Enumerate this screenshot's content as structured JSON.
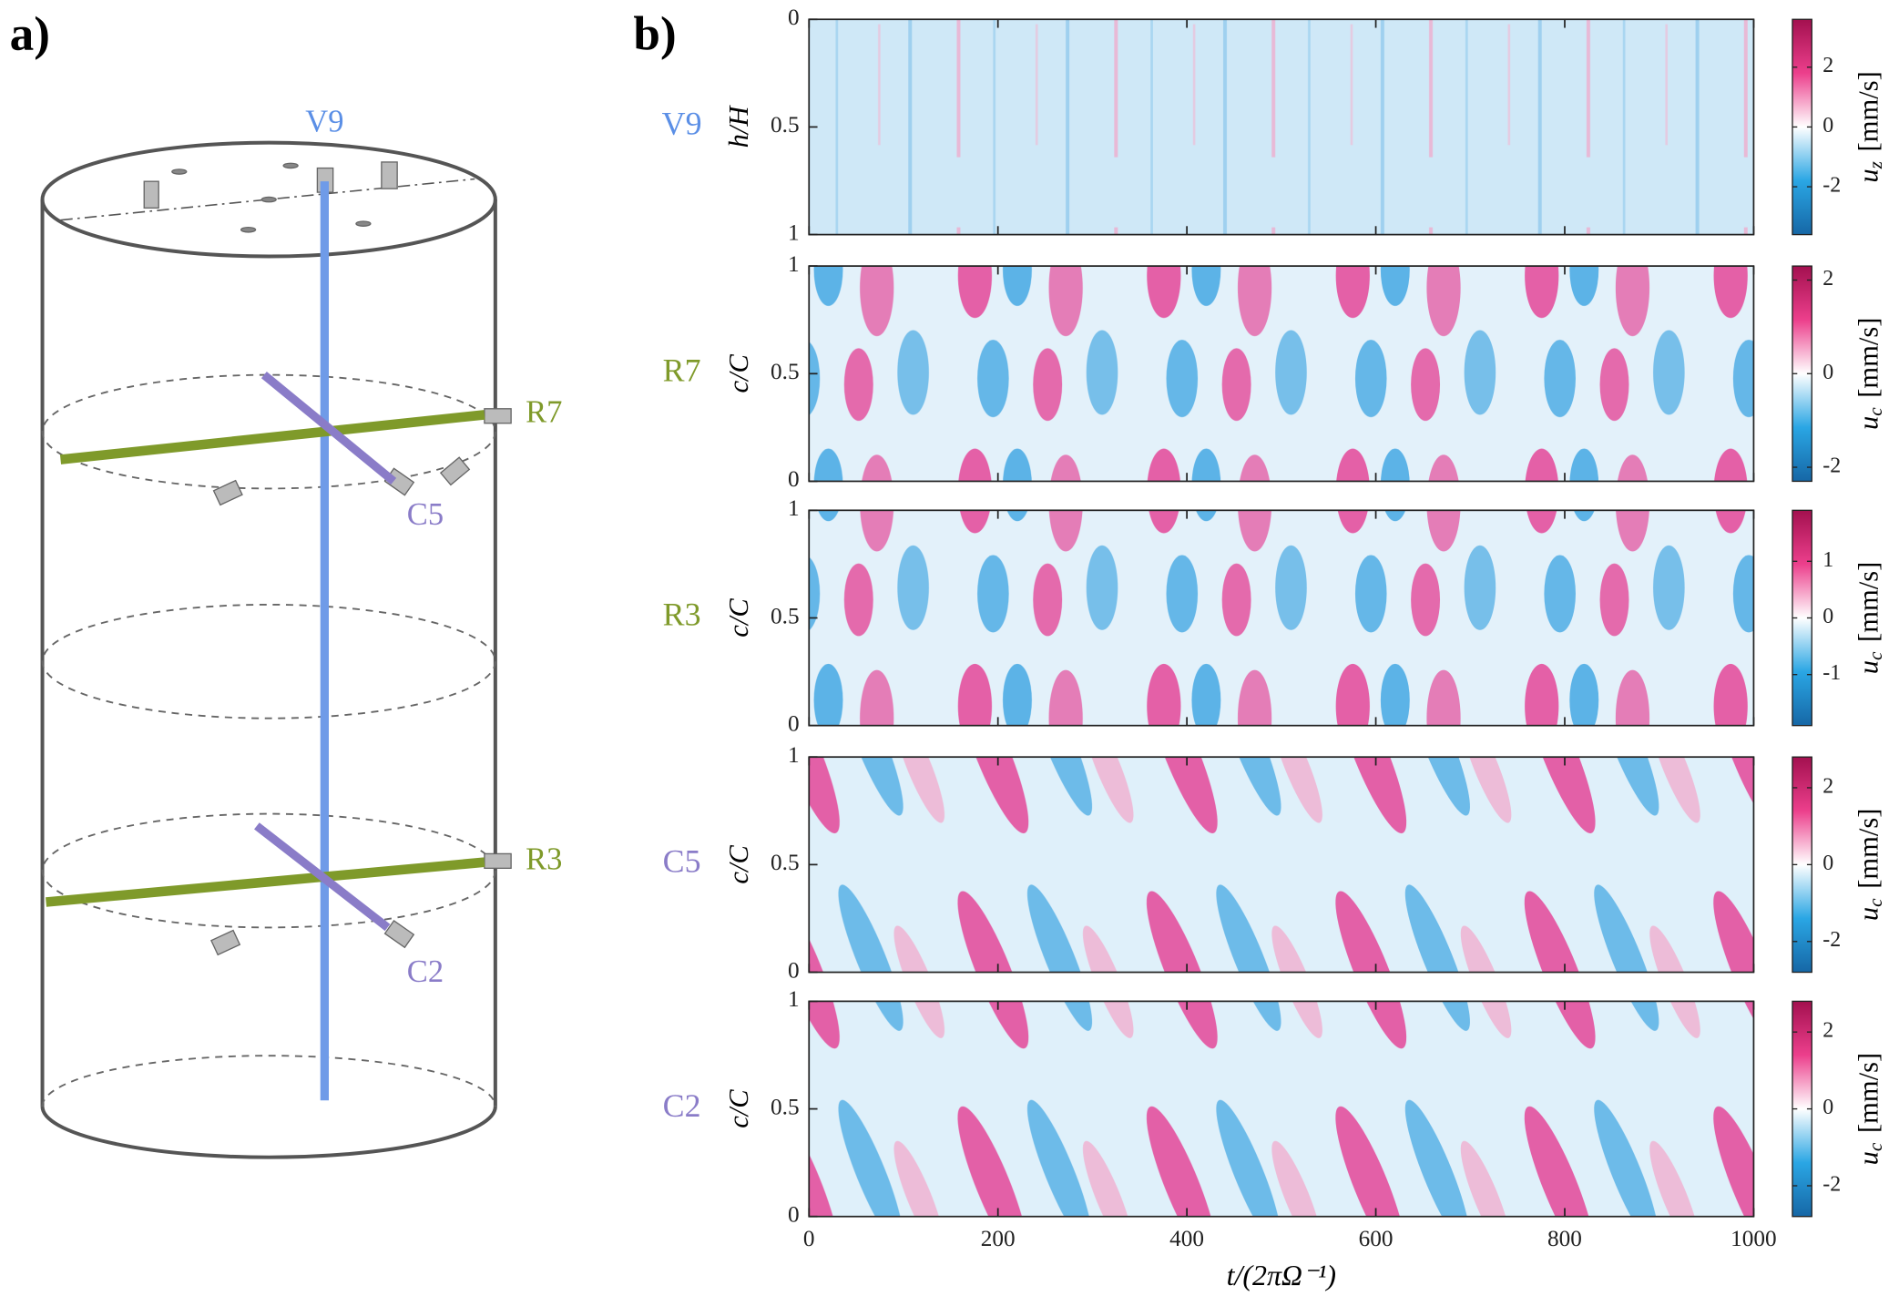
{
  "panel_a": {
    "label": "a)",
    "probes": [
      {
        "name": "V9",
        "color": "#5b8fe6"
      },
      {
        "name": "R7",
        "color": "#7f9a2a"
      },
      {
        "name": "C5",
        "color": "#8a7cc8"
      },
      {
        "name": "R3",
        "color": "#7f9a2a"
      },
      {
        "name": "C2",
        "color": "#8a7cc8"
      }
    ]
  },
  "panel_b": {
    "label": "b)",
    "type": "heatmap",
    "xlabel": "t/(2πΩ⁻¹)",
    "xlim": [
      0,
      1000
    ],
    "xticks": [
      0,
      200,
      400,
      600,
      800,
      1000
    ],
    "panels": [
      {
        "name": "V9",
        "color": "#5b8fe6",
        "ylabel": "h/H",
        "ylim": [
          0,
          1
        ],
        "inverted": true,
        "yticks": [
          0,
          0.5,
          1
        ],
        "colorbar": {
          "symbol": "u",
          "sub": "z",
          "unit": "[mm/s]",
          "lim": [
            -3.6,
            3.6
          ],
          "ticks": [
            -2,
            0,
            2
          ]
        }
      },
      {
        "name": "R7",
        "color": "#7f9a2a",
        "ylabel": "c/C",
        "ylim": [
          0,
          1
        ],
        "inverted": false,
        "yticks": [
          0,
          0.5,
          1
        ],
        "colorbar": {
          "symbol": "u",
          "sub": "c",
          "unit": "[mm/s]",
          "lim": [
            -2.3,
            2.3
          ],
          "ticks": [
            -2,
            0,
            2
          ]
        }
      },
      {
        "name": "R3",
        "color": "#7f9a2a",
        "ylabel": "c/C",
        "ylim": [
          0,
          1
        ],
        "inverted": false,
        "yticks": [
          0,
          0.5,
          1
        ],
        "colorbar": {
          "symbol": "u",
          "sub": "c",
          "unit": "[mm/s]",
          "lim": [
            -1.9,
            1.9
          ],
          "ticks": [
            -1,
            0,
            1
          ]
        }
      },
      {
        "name": "C5",
        "color": "#8a7cc8",
        "ylabel": "c/C",
        "ylim": [
          0,
          1
        ],
        "inverted": false,
        "yticks": [
          0,
          0.5,
          1
        ],
        "colorbar": {
          "symbol": "u",
          "sub": "c",
          "unit": "[mm/s]",
          "lim": [
            -2.8,
            2.8
          ],
          "ticks": [
            -2,
            0,
            2
          ]
        }
      },
      {
        "name": "C2",
        "color": "#8a7cc8",
        "ylabel": "c/C",
        "ylim": [
          0,
          1
        ],
        "inverted": false,
        "yticks": [
          0,
          0.5,
          1
        ],
        "colorbar": {
          "symbol": "u",
          "sub": "c",
          "unit": "[mm/s]",
          "lim": [
            -2.8,
            2.8
          ],
          "ticks": [
            -2,
            0,
            2
          ]
        }
      }
    ]
  }
}
